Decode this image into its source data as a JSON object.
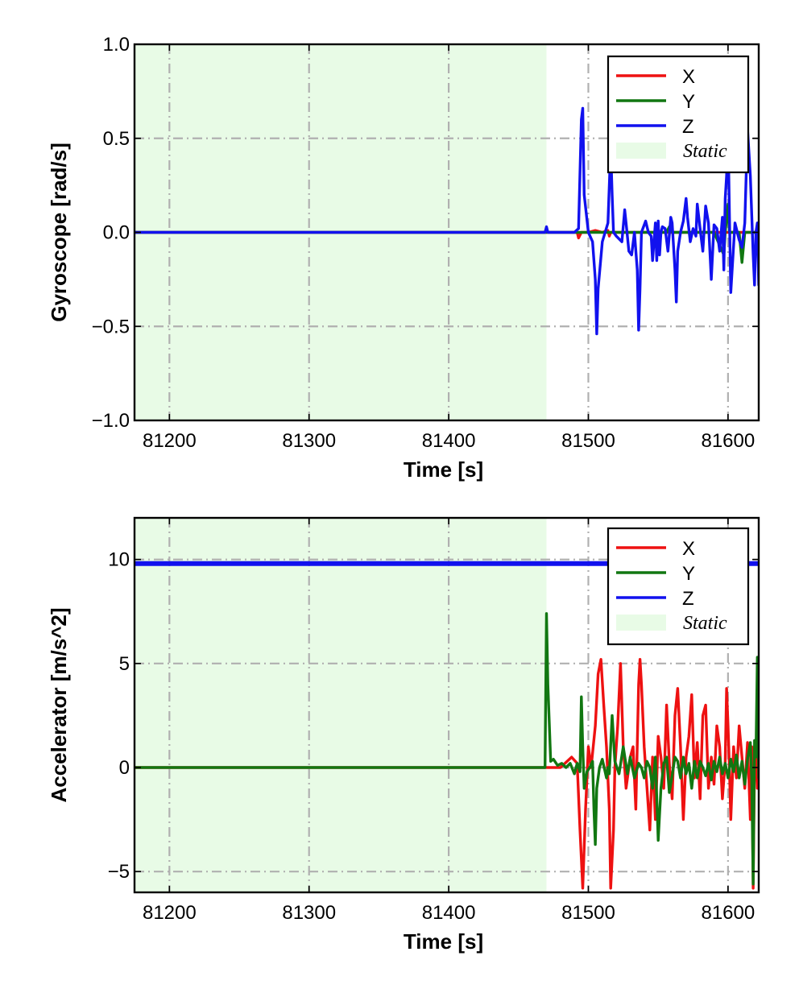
{
  "chart_data": [
    {
      "type": "line",
      "xlabel": "Time [s]",
      "ylabel": "Gyroscope [rad/s]",
      "xlim": [
        81175,
        81622
      ],
      "ylim": [
        -1.0,
        1.0
      ],
      "xticks": [
        81200,
        81300,
        81400,
        81500,
        81600
      ],
      "xtick_labels": [
        "81200",
        "81300",
        "81400",
        "81500",
        "81600"
      ],
      "yticks": [
        -1.0,
        -0.5,
        0.0,
        0.5,
        1.0
      ],
      "ytick_labels": [
        "−1.0",
        "−0.5",
        "0.0",
        "0.5",
        "1.0"
      ],
      "grid": true,
      "legend_position": "top-right",
      "legend": [
        "X",
        "Y",
        "Z",
        "Static"
      ],
      "static_region": {
        "label": "Static",
        "x_start": 81175,
        "x_end": 81470,
        "color": "#e8fbe6"
      },
      "series": [
        {
          "name": "X",
          "color": "#ee1111",
          "x": [
            81175,
            81470,
            81492,
            81493,
            81495,
            81500,
            81505,
            81510,
            81514,
            81515,
            81516,
            81520,
            81530,
            81540,
            81560,
            81580,
            81600,
            81622
          ],
          "y": [
            0,
            0,
            0,
            -0.03,
            0,
            0,
            0.01,
            0,
            0.01,
            -0.02,
            0,
            0,
            0,
            0,
            0,
            0,
            0,
            0
          ]
        },
        {
          "name": "Y",
          "color": "#117711",
          "x": [
            81175,
            81470,
            81500,
            81520,
            81540,
            81556,
            81558,
            81560,
            81575,
            81590,
            81597,
            81598,
            81600,
            81601,
            81602,
            81608,
            81610,
            81612,
            81622
          ],
          "y": [
            0,
            0,
            0,
            0,
            0,
            0,
            0.03,
            0,
            0,
            0,
            -0.12,
            0,
            0.15,
            0,
            0,
            0,
            -0.16,
            0,
            0
          ]
        },
        {
          "name": "Z",
          "color": "#1111ee",
          "x": [
            81175,
            81469,
            81470,
            81471,
            81490,
            81493,
            81495,
            81496,
            81497,
            81500,
            81503,
            81505,
            81506,
            81507,
            81510,
            81514,
            81516,
            81517,
            81518,
            81520,
            81524,
            81526,
            81527,
            81529,
            81531,
            81533,
            81535,
            81536,
            81537,
            81538,
            81541,
            81543,
            81545,
            81546,
            81548,
            81549,
            81550,
            81551,
            81552,
            81553,
            81555,
            81557,
            81559,
            81560,
            81562,
            81563,
            81564,
            81566,
            81568,
            81570,
            81571,
            81573,
            81575,
            81577,
            81578,
            81580,
            81582,
            81584,
            81586,
            81588,
            81590,
            81592,
            81594,
            81596,
            81597,
            81598,
            81599,
            81600,
            81601,
            81602,
            81605,
            81608,
            81610,
            81612,
            81614,
            81616,
            81618,
            81619,
            81620,
            81621,
            81622
          ],
          "y": [
            0,
            0,
            0.03,
            0,
            0,
            0.02,
            0.6,
            0.66,
            0.2,
            0,
            -0.05,
            -0.25,
            -0.54,
            -0.3,
            -0.05,
            0.05,
            0.45,
            0.2,
            0,
            -0.02,
            -0.05,
            0.12,
            0.05,
            -0.1,
            -0.12,
            0,
            -0.2,
            -0.52,
            -0.3,
            0,
            0.06,
            0,
            -0.02,
            -0.15,
            0.05,
            -0.15,
            0.06,
            -0.12,
            0,
            0.03,
            0.02,
            -0.1,
            0.08,
            0.05,
            -0.2,
            -0.37,
            -0.1,
            0,
            0.06,
            0.18,
            0.08,
            -0.05,
            0.02,
            -0.02,
            0.15,
            0.02,
            -0.1,
            0.14,
            0.05,
            -0.25,
            0.04,
            0.02,
            -0.1,
            0.08,
            -0.2,
            0.18,
            0.3,
            0.55,
            0.1,
            -0.32,
            0.05,
            -0.04,
            -0.08,
            0.05,
            0.55,
            0.3,
            -0.12,
            -0.28,
            0,
            0.05,
            -0.28
          ]
        }
      ]
    },
    {
      "type": "line",
      "xlabel": "Time [s]",
      "ylabel": "Accelerator [m/s^2]",
      "xlim": [
        81175,
        81622
      ],
      "ylim": [
        -6,
        12
      ],
      "xticks": [
        81200,
        81300,
        81400,
        81500,
        81600
      ],
      "xtick_labels": [
        "81200",
        "81300",
        "81400",
        "81500",
        "81600"
      ],
      "yticks": [
        -5,
        0,
        5,
        10
      ],
      "ytick_labels": [
        "−5",
        "0",
        "5",
        "10"
      ],
      "grid": true,
      "legend_position": "top-right",
      "legend": [
        "X",
        "Y",
        "Z",
        "Static"
      ],
      "static_region": {
        "label": "Static",
        "x_start": 81175,
        "x_end": 81470,
        "color": "#e8fbe6"
      },
      "series": [
        {
          "name": "X",
          "color": "#ee1111",
          "x": [
            81175,
            81470,
            81480,
            81488,
            81492,
            81494,
            81496,
            81498,
            81500,
            81502,
            81505,
            81507,
            81509,
            81511,
            81513,
            81515,
            81516,
            81518,
            81519,
            81521,
            81523,
            81525,
            81527,
            81530,
            81532,
            81534,
            81536,
            81537,
            81538,
            81540,
            81542,
            81544,
            81546,
            81548,
            81550,
            81552,
            81554,
            81556,
            81558,
            81560,
            81562,
            81564,
            81566,
            81568,
            81570,
            81572,
            81574,
            81576,
            81578,
            81580,
            81582,
            81584,
            81586,
            81588,
            81590,
            81592,
            81594,
            81596,
            81598,
            81599,
            81600,
            81601,
            81602,
            81604,
            81606,
            81608,
            81610,
            81612,
            81614,
            81616,
            81617,
            81618,
            81619,
            81620,
            81621,
            81622
          ],
          "y": [
            0,
            0,
            0,
            0.5,
            0.2,
            -3,
            -5.8,
            -2,
            1,
            0,
            2,
            4.5,
            5.2,
            3,
            1,
            -2,
            -5.8,
            -3,
            0,
            2,
            5,
            1,
            -1,
            0.5,
            1,
            -2,
            4,
            5.2,
            4,
            1,
            -1,
            -3,
            0.5,
            -2.5,
            1.5,
            0.5,
            -1,
            3,
            0.2,
            -1.5,
            2.5,
            3.8,
            1,
            -2.5,
            0.5,
            1.5,
            3.5,
            -0.5,
            1.2,
            -1.5,
            2.5,
            3,
            -1,
            0.5,
            -0.8,
            2,
            1,
            -1.5,
            0.3,
            3.8,
            2,
            0,
            -2.5,
            1,
            -0.5,
            2,
            0.5,
            -1,
            1.2,
            -2.5,
            1,
            -5.8,
            0.3,
            1,
            -1,
            0
          ]
        },
        {
          "name": "Y",
          "color": "#117711",
          "x": [
            81175,
            81469,
            81470,
            81471,
            81473,
            81475,
            81478,
            81481,
            81484,
            81487,
            81490,
            81492,
            81494,
            81495,
            81496,
            81497,
            81499,
            81501,
            81503,
            81504,
            81505,
            81506,
            81508,
            81510,
            81513,
            81514,
            81515,
            81517,
            81519,
            81522,
            81525,
            81528,
            81530,
            81533,
            81536,
            81538,
            81540,
            81542,
            81544,
            81546,
            81548,
            81550,
            81552,
            81554,
            81556,
            81558,
            81560,
            81562,
            81564,
            81566,
            81568,
            81570,
            81572,
            81574,
            81576,
            81578,
            81580,
            81582,
            81584,
            81586,
            81588,
            81590,
            81592,
            81594,
            81596,
            81598,
            81600,
            81602,
            81604,
            81606,
            81608,
            81610,
            81612,
            81614,
            81616,
            81617,
            81618,
            81619,
            81620,
            81621,
            81622
          ],
          "y": [
            0,
            0,
            7.4,
            4,
            0.3,
            0.4,
            0.1,
            0.2,
            0,
            0.2,
            -0.3,
            0.2,
            -0.2,
            3.4,
            1,
            -1,
            -0.2,
            0,
            0.3,
            -2,
            -3.7,
            -1,
            0,
            0.4,
            -0.5,
            0,
            -0.3,
            2.5,
            0.3,
            -0.3,
            1,
            -0.3,
            0.5,
            -0.5,
            0.2,
            0,
            -0.5,
            0.3,
            0,
            -1,
            0.5,
            -3.5,
            -1,
            0.2,
            0.5,
            -1.2,
            -0.4,
            0.5,
            0.3,
            -0.5,
            0.5,
            -0.3,
            0.2,
            -1,
            0.3,
            -0.5,
            0.3,
            0,
            -0.4,
            0.2,
            -0.6,
            0.3,
            -0.2,
            0.5,
            -0.3,
            0.2,
            -0.5,
            0.4,
            -0.2,
            0.6,
            -0.5,
            0.3,
            -0.8,
            0.4,
            1.2,
            -0.5,
            -5.6,
            1.3,
            0.5,
            5.3,
            -0.5
          ]
        },
        {
          "name": "Z",
          "color": "#1111ee",
          "x": [
            81175,
            81622
          ],
          "y": [
            9.8,
            9.8
          ]
        }
      ]
    }
  ]
}
